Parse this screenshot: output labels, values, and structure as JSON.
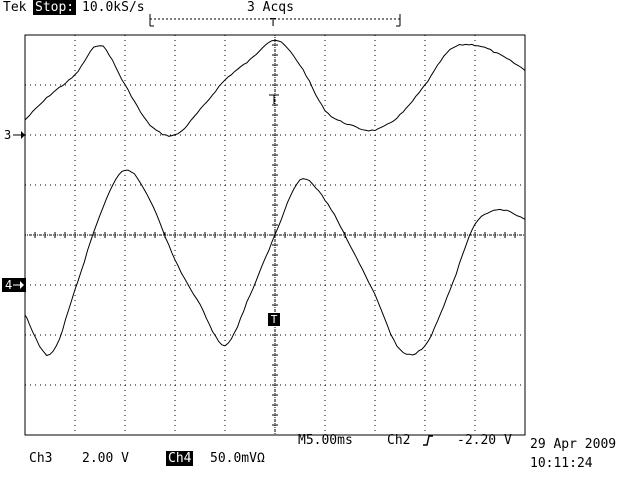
{
  "header": {
    "brand": "Tek",
    "run_state": "Stop:",
    "sample_rate": "10.0kS/s",
    "acquisitions": "3 Acqs"
  },
  "channels": {
    "ch3_marker": "3",
    "ch4_marker": "4",
    "trigger_marker": "T",
    "ch3_label": "Ch3",
    "ch3_scale": "2.00 V",
    "ch4_label": "Ch4",
    "ch4_scale": "50.0mVΩ"
  },
  "timebase": {
    "horizontal": "M5.00ms",
    "trigger_source": "Ch2",
    "trigger_slope_icon": "rising-edge-icon",
    "trigger_level": "-2.20 V"
  },
  "timestamp": {
    "date": "29 Apr 2009",
    "time": "10:11:24"
  },
  "chart_data": {
    "type": "line",
    "title": "",
    "xlabel": "",
    "ylabel": "",
    "grid": true,
    "xlim": [
      0,
      10
    ],
    "ylim": [
      -4,
      4
    ],
    "series": [
      {
        "x": [
          0,
          0.5,
          1,
          1.5,
          2,
          2.5,
          3,
          3.5,
          4,
          4.5,
          5,
          5.5,
          6,
          6.5,
          7,
          7.5,
          8,
          8.5,
          9,
          9.5,
          10
        ],
        "values": [
          2.3,
          2.8,
          3.2,
          3.8,
          3.0,
          2.2,
          2.0,
          2.5,
          3.1,
          3.5,
          3.9,
          3.4,
          2.5,
          2.2,
          2.1,
          2.4,
          3.0,
          3.7,
          3.8,
          3.6,
          3.3
        ]
      },
      {
        "x": [
          0,
          0.5,
          1,
          1.5,
          2,
          2.5,
          3,
          3.5,
          4,
          4.5,
          5,
          5.5,
          6,
          6.5,
          7,
          7.5,
          8,
          8.5,
          9,
          9.5,
          10
        ],
        "values": [
          -1.6,
          -2.4,
          -1.1,
          0.4,
          1.3,
          0.7,
          -0.5,
          -1.4,
          -2.2,
          -1.2,
          0.0,
          1.1,
          0.7,
          -0.2,
          -1.2,
          -2.3,
          -2.2,
          -1.1,
          0.2,
          0.5,
          0.3
        ]
      }
    ]
  }
}
